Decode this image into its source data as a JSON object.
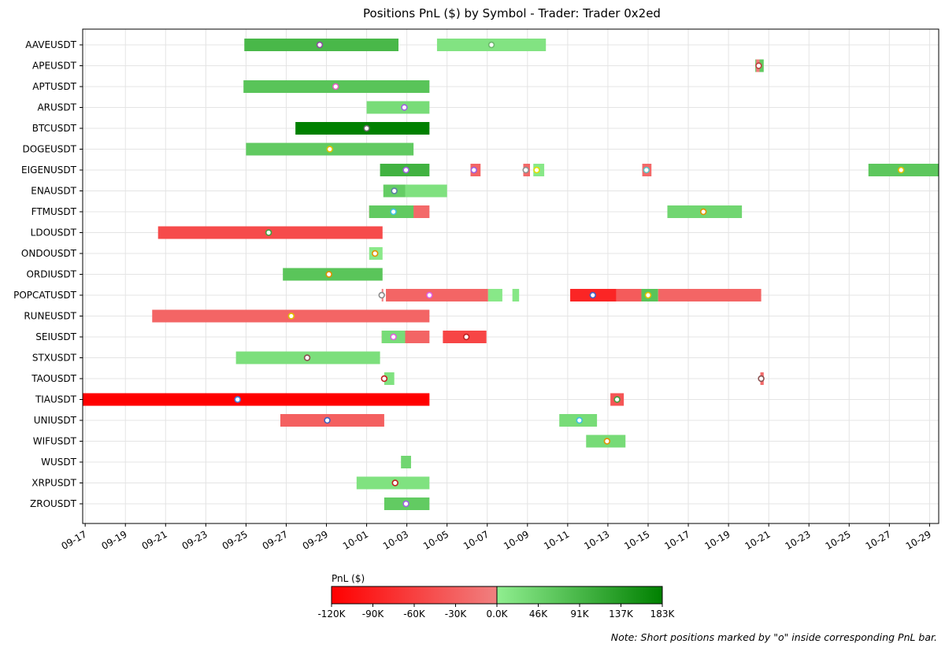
{
  "chart_data": {
    "type": "gantt",
    "title": "Positions PnL ($) by Symbol - Trader: Trader 0x2ed",
    "x_axis_type": "date",
    "xlim": [
      "2024-09-15",
      "2024-10-29"
    ],
    "x_tick_labels": [
      "09-17",
      "09-19",
      "09-21",
      "09-23",
      "09-25",
      "09-27",
      "09-29",
      "10-01",
      "10-03",
      "10-05",
      "10-07",
      "10-09",
      "10-11",
      "10-13",
      "10-15",
      "10-17",
      "10-19",
      "10-21",
      "10-23",
      "10-25",
      "10-27",
      "10-29"
    ],
    "x_tick_values": [
      "2024-09-17",
      "2024-09-19",
      "2024-09-21",
      "2024-09-23",
      "2024-09-25",
      "2024-09-27",
      "2024-09-29",
      "2024-10-01",
      "2024-10-03",
      "2024-10-05",
      "2024-10-07",
      "2024-10-09",
      "2024-10-11",
      "2024-10-13",
      "2024-10-15",
      "2024-10-17",
      "2024-10-19",
      "2024-10-21",
      "2024-10-23",
      "2024-10-25",
      "2024-10-27",
      "2024-10-29"
    ],
    "grid": true,
    "symbols": [
      "AAVEUSDT",
      "APEUSDT",
      "APTUSDT",
      "ARUSDT",
      "BTCUSDT",
      "DOGEUSDT",
      "EIGENUSDT",
      "ENAUSDT",
      "FTMUSDT",
      "LDOUSDT",
      "ONDOUSDT",
      "ORDIUSDT",
      "POPCATUSDT",
      "RUNEUSDT",
      "SEIUSDT",
      "STXUSDT",
      "TAOUSDT",
      "TIAUSDT",
      "UNIUSDT",
      "WIFUSDT",
      "WUSDT",
      "XRPUSDT",
      "ZROUSDT"
    ],
    "positions": [
      {
        "symbol": "AAVEUSDT",
        "start": "2024-09-24 22:00",
        "end": "2024-10-02 14:00",
        "pnl": 90000,
        "short_marker": "2024-09-28 16:00",
        "marker_color": "#8a4fa0"
      },
      {
        "symbol": "AAVEUSDT",
        "start": "2024-10-04 12:00",
        "end": "2024-10-09 22:00",
        "pnl": 18000,
        "short_marker": "2024-10-07 05:00",
        "marker_color": "#6bb86b"
      },
      {
        "symbol": "APEUSDT",
        "start": "2024-10-20 08:00",
        "end": "2024-10-20 18:00",
        "pnl": 60000,
        "short_marker": "2024-10-20 12:00",
        "marker_color": "#c04040"
      },
      {
        "symbol": "APEUSDT",
        "start": "2024-10-20 09:00",
        "end": "2024-10-20 13:00",
        "pnl": -5000,
        "short_marker": null
      },
      {
        "symbol": "APTUSDT",
        "start": "2024-09-24 21:00",
        "end": "2024-10-04 03:00",
        "pnl": 70000,
        "short_marker": "2024-09-29 11:00",
        "marker_color": "#e060c0"
      },
      {
        "symbol": "ARUSDT",
        "start": "2024-10-01 00:00",
        "end": "2024-10-04 03:00",
        "pnl": 30000,
        "short_marker": "2024-10-02 21:00",
        "marker_color": "#a060e0"
      },
      {
        "symbol": "BTCUSDT",
        "start": "2024-09-27 11:00",
        "end": "2024-10-04 03:00",
        "pnl": 183000,
        "short_marker": "2024-10-01 00:00",
        "marker_color": "#666666"
      },
      {
        "symbol": "DOGEUSDT",
        "start": "2024-09-25 00:00",
        "end": "2024-10-03 08:00",
        "pnl": 60000,
        "short_marker": "2024-09-29 04:00",
        "marker_color": "#e0c000"
      },
      {
        "symbol": "EIGENUSDT",
        "start": "2024-10-01 16:00",
        "end": "2024-10-04 03:00",
        "pnl": 100000,
        "short_marker": "2024-10-02 23:00",
        "marker_color": "#a060e0"
      },
      {
        "symbol": "EIGENUSDT",
        "start": "2024-10-06 04:00",
        "end": "2024-10-06 16:00",
        "pnl": -25000,
        "short_marker": "2024-10-06 08:00",
        "marker_color": "#a060e0"
      },
      {
        "symbol": "EIGENUSDT",
        "start": "2024-10-08 19:00",
        "end": "2024-10-09 03:00",
        "pnl": -22000,
        "short_marker": "2024-10-08 22:00",
        "marker_color": "#909090"
      },
      {
        "symbol": "EIGENUSDT",
        "start": "2024-10-09 07:00",
        "end": "2024-10-09 20:00",
        "pnl": 10000,
        "short_marker": "2024-10-09 11:00",
        "marker_color": "#e0e000"
      },
      {
        "symbol": "EIGENUSDT",
        "start": "2024-10-14 17:00",
        "end": "2024-10-15 04:00",
        "pnl": -22000,
        "short_marker": "2024-10-14 22:00",
        "marker_color": "#60c0c0"
      },
      {
        "symbol": "EIGENUSDT",
        "start": "2024-10-25 23:00",
        "end": "2024-10-29 13:00",
        "pnl": 65000,
        "short_marker": "2024-10-27 14:00",
        "marker_color": "#e0c000"
      },
      {
        "symbol": "ENAUSDT",
        "start": "2024-10-01 20:00",
        "end": "2024-10-05 00:00",
        "pnl": 22000,
        "short_marker": "2024-10-02 09:00",
        "marker_color": "#5b7fa6"
      },
      {
        "symbol": "ENAUSDT",
        "start": "2024-10-01 20:00",
        "end": "2024-10-02 22:00",
        "pnl": 55000,
        "short_marker": null
      },
      {
        "symbol": "FTMUSDT",
        "start": "2024-10-01 03:00",
        "end": "2024-10-04 03:00",
        "pnl": -22000,
        "short_marker": null
      },
      {
        "symbol": "FTMUSDT",
        "start": "2024-10-01 03:00",
        "end": "2024-10-03 08:00",
        "pnl": 60000,
        "short_marker": "2024-10-02 08:00",
        "marker_color": "#40c0e0"
      },
      {
        "symbol": "FTMUSDT",
        "start": "2024-10-15 23:00",
        "end": "2024-10-19 16:00",
        "pnl": 40000,
        "short_marker": "2024-10-17 18:00",
        "marker_color": "#e09000"
      },
      {
        "symbol": "LDOUSDT",
        "start": "2024-09-20 15:00",
        "end": "2024-10-01 19:00",
        "pnl": -50000,
        "short_marker": "2024-09-26 03:00",
        "marker_color": "#40a040"
      },
      {
        "symbol": "ONDOUSDT",
        "start": "2024-10-01 03:00",
        "end": "2024-10-01 19:00",
        "pnl": 8000,
        "short_marker": "2024-10-01 10:00",
        "marker_color": "#e09000"
      },
      {
        "symbol": "ORDIUSDT",
        "start": "2024-09-26 20:00",
        "end": "2024-10-01 19:00",
        "pnl": 68000,
        "short_marker": "2024-09-29 03:00",
        "marker_color": "#e09000"
      },
      {
        "symbol": "POPCATUSDT",
        "start": "2024-10-01 23:00",
        "end": "2024-10-07 01:00",
        "pnl": -25000,
        "short_marker": "2024-10-04 03:00",
        "marker_color": "#e060e0"
      },
      {
        "symbol": "POPCATUSDT",
        "start": "2024-10-07 01:00",
        "end": "2024-10-07 18:00",
        "pnl": 10000,
        "short_marker": null
      },
      {
        "symbol": "POPCATUSDT",
        "start": "2024-10-08 06:00",
        "end": "2024-10-08 14:00",
        "pnl": 12000,
        "short_marker": null
      },
      {
        "symbol": "POPCATUSDT",
        "start": "2024-10-11 03:00",
        "end": "2024-10-13 10:00",
        "pnl": -85000,
        "short_marker": "2024-10-12 06:00",
        "marker_color": "#4060c0"
      },
      {
        "symbol": "POPCATUSDT",
        "start": "2024-10-13 10:00",
        "end": "2024-10-14 16:00",
        "pnl": -35000,
        "short_marker": null
      },
      {
        "symbol": "POPCATUSDT",
        "start": "2024-10-14 16:00",
        "end": "2024-10-15 12:00",
        "pnl": 70000,
        "short_marker": "2024-10-15 00:00",
        "marker_color": "#e0c000"
      },
      {
        "symbol": "POPCATUSDT",
        "start": "2024-10-15 12:00",
        "end": "2024-10-20 15:00",
        "pnl": -25000,
        "short_marker": null
      },
      {
        "symbol": "POPCATUSDT",
        "start": "2024-10-01 18:00",
        "end": "2024-10-01 19:00",
        "pnl": -2000,
        "short_marker": "2024-10-01 18:00",
        "marker_color": "#8a8a8a"
      },
      {
        "symbol": "RUNEUSDT",
        "start": "2024-09-20 08:00",
        "end": "2024-10-04 03:00",
        "pnl": -25000,
        "short_marker": "2024-09-27 06:00",
        "marker_color": "#e0c000"
      },
      {
        "symbol": "SEIUSDT",
        "start": "2024-10-01 18:00",
        "end": "2024-10-04 03:00",
        "pnl": -25000,
        "short_marker": null
      },
      {
        "symbol": "SEIUSDT",
        "start": "2024-10-01 18:00",
        "end": "2024-10-02 22:00",
        "pnl": 30000,
        "short_marker": "2024-10-02 08:00",
        "marker_color": "#e060e0"
      },
      {
        "symbol": "SEIUSDT",
        "start": "2024-10-04 19:00",
        "end": "2024-10-06 23:00",
        "pnl": -55000,
        "short_marker": "2024-10-05 23:00",
        "marker_color": "#c02020"
      },
      {
        "symbol": "STXUSDT",
        "start": "2024-09-24 12:00",
        "end": "2024-10-01 16:00",
        "pnl": 25000,
        "short_marker": "2024-09-28 01:00",
        "marker_color": "#8a4f4f"
      },
      {
        "symbol": "TAOUSDT",
        "start": "2024-10-01 21:00",
        "end": "2024-10-02 09:00",
        "pnl": 20000,
        "short_marker": "2024-10-01 21:00",
        "marker_color": "#c02020"
      },
      {
        "symbol": "TAOUSDT",
        "start": "2024-10-20 14:00",
        "end": "2024-10-20 18:00",
        "pnl": -20000,
        "short_marker": "2024-10-20 15:00",
        "marker_color": "#8a4f4f"
      },
      {
        "symbol": "TIAUSDT",
        "start": "2024-09-15 00:00",
        "end": "2024-10-04 03:00",
        "pnl": -120000,
        "short_marker": "2024-09-24 14:00",
        "marker_color": "#4080e0"
      },
      {
        "symbol": "TIAUSDT",
        "start": "2024-10-13 03:00",
        "end": "2024-10-13 19:00",
        "pnl": -40000,
        "short_marker": "2024-10-13 11:00",
        "marker_color": "#40a040"
      },
      {
        "symbol": "UNIUSDT",
        "start": "2024-09-26 17:00",
        "end": "2024-10-01 21:00",
        "pnl": -30000,
        "short_marker": "2024-09-29 01:00",
        "marker_color": "#4060c0"
      },
      {
        "symbol": "UNIUSDT",
        "start": "2024-10-10 14:00",
        "end": "2024-10-12 11:00",
        "pnl": 30000,
        "short_marker": "2024-10-11 14:00",
        "marker_color": "#40c0e0"
      },
      {
        "symbol": "WIFUSDT",
        "start": "2024-10-11 22:00",
        "end": "2024-10-13 21:00",
        "pnl": 32000,
        "short_marker": "2024-10-12 23:00",
        "marker_color": "#e09000"
      },
      {
        "symbol": "WUSDT",
        "start": "2024-10-02 17:00",
        "end": "2024-10-03 05:00",
        "pnl": 40000,
        "short_marker": null
      },
      {
        "symbol": "XRPUSDT",
        "start": "2024-09-30 12:00",
        "end": "2024-10-04 03:00",
        "pnl": 20000,
        "short_marker": "2024-10-02 10:00",
        "marker_color": "#c02020"
      },
      {
        "symbol": "ZROUSDT",
        "start": "2024-10-01 21:00",
        "end": "2024-10-04 03:00",
        "pnl": 58000,
        "short_marker": "2024-10-02 23:00",
        "marker_color": "#a060e0"
      }
    ],
    "colorbar": {
      "label": "PnL ($)",
      "min": -120000,
      "max": 183000,
      "tick_labels": [
        "-120K",
        "-90K",
        "-60K",
        "-30K",
        "0.0K",
        "46K",
        "91K",
        "137K",
        "183K"
      ],
      "negative_colors": [
        "#ff0000",
        "#f08080"
      ],
      "positive_colors": [
        "#90ee90",
        "#008000"
      ]
    },
    "note": "Note: Short positions marked by \"o\" inside corresponding PnL bar."
  }
}
